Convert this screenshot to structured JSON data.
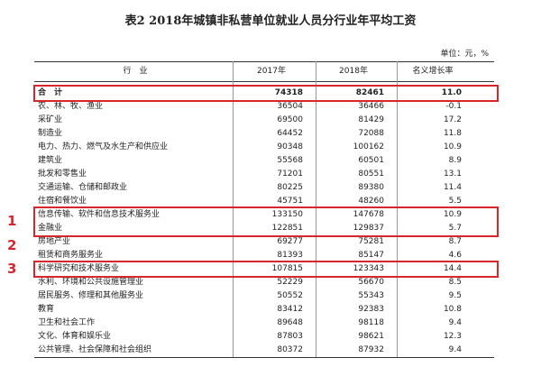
{
  "header": {
    "title": "表2 2018年城镇非私营单位就业人员分行业年平均工资",
    "unit": "单位：元，%"
  },
  "table": {
    "columns": [
      "行　业",
      "2017年",
      "2018年",
      "名义增长率"
    ],
    "rows": [
      [
        "合　计",
        "74318",
        "82461",
        "11.0"
      ],
      [
        "农、林、牧、渔业",
        "36504",
        "36466",
        "-0.1"
      ],
      [
        "采矿业",
        "69500",
        "81429",
        "17.2"
      ],
      [
        "制造业",
        "64452",
        "72088",
        "11.8"
      ],
      [
        "电力、热力、燃气及水生产和供应业",
        "90348",
        "100162",
        "10.9"
      ],
      [
        "建筑业",
        "55568",
        "60501",
        "8.9"
      ],
      [
        "批发和零售业",
        "71201",
        "80551",
        "13.1"
      ],
      [
        "交通运输、仓储和邮政业",
        "80225",
        "89380",
        "11.4"
      ],
      [
        "住宿和餐饮业",
        "45751",
        "48260",
        "5.5"
      ],
      [
        "信息传输、软件和信息技术服务业",
        "133150",
        "147678",
        "10.9"
      ],
      [
        "金融业",
        "122851",
        "129837",
        "5.7"
      ],
      [
        "房地产业",
        "69277",
        "75281",
        "8.7"
      ],
      [
        "租赁和商务服务业",
        "81393",
        "85147",
        "4.6"
      ],
      [
        "科学研究和技术服务业",
        "107815",
        "123343",
        "14.4"
      ],
      [
        "水利、环境和公共设施管理业",
        "52229",
        "56670",
        "8.5"
      ],
      [
        "居民服务、修理和其他服务业",
        "50552",
        "55343",
        "9.5"
      ],
      [
        "教育",
        "83412",
        "92383",
        "10.8"
      ],
      [
        "卫生和社会工作",
        "89648",
        "98118",
        "9.4"
      ],
      [
        "文化、体育和娱乐业",
        "87803",
        "98621",
        "12.3"
      ],
      [
        "公共管理、社会保障和社会组织",
        "80372",
        "87932",
        "9.4"
      ]
    ]
  },
  "annotations": [
    "1",
    "2",
    "3"
  ]
}
